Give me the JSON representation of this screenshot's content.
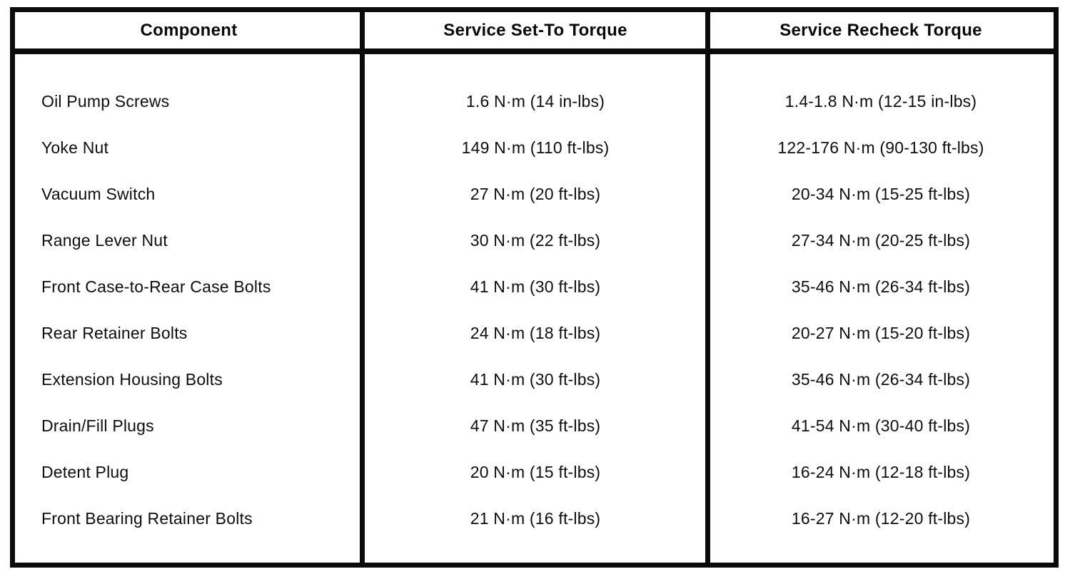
{
  "colors": {
    "background": "#ffffff",
    "border": "#0b0b0b",
    "text": "#0e0e0e"
  },
  "table": {
    "columns": [
      "Component",
      "Service Set-To Torque",
      "Service Recheck Torque"
    ],
    "rows": [
      {
        "component": "Oil Pump Screws",
        "set_to": "1.6 N·m (14 in-lbs)",
        "recheck": "1.4-1.8 N·m (12-15 in-lbs)"
      },
      {
        "component": "Yoke Nut",
        "set_to": "149 N·m (110 ft-lbs)",
        "recheck": "122-176 N·m (90-130 ft-lbs)"
      },
      {
        "component": "Vacuum Switch",
        "set_to": "27 N·m (20 ft-lbs)",
        "recheck": "20-34 N·m (15-25 ft-lbs)"
      },
      {
        "component": "Range Lever Nut",
        "set_to": "30 N·m (22 ft-lbs)",
        "recheck": "27-34 N·m (20-25 ft-lbs)"
      },
      {
        "component": "Front Case-to-Rear Case Bolts",
        "set_to": "41 N·m (30 ft-lbs)",
        "recheck": "35-46 N·m (26-34 ft-lbs)"
      },
      {
        "component": "Rear Retainer Bolts",
        "set_to": "24 N·m (18 ft-lbs)",
        "recheck": "20-27 N·m (15-20 ft-lbs)"
      },
      {
        "component": "Extension Housing Bolts",
        "set_to": "41 N·m (30 ft-lbs)",
        "recheck": "35-46 N·m (26-34 ft-lbs)"
      },
      {
        "component": "Drain/Fill Plugs",
        "set_to": "47 N·m (35 ft-lbs)",
        "recheck": "41-54 N·m (30-40 ft-lbs)"
      },
      {
        "component": "Detent Plug",
        "set_to": "20 N·m (15 ft-lbs)",
        "recheck": "16-24 N·m (12-18 ft-lbs)"
      },
      {
        "component": "Front Bearing Retainer Bolts",
        "set_to": "21 N·m (16 ft-lbs)",
        "recheck": "16-27 N·m (12-20 ft-lbs)"
      }
    ]
  }
}
